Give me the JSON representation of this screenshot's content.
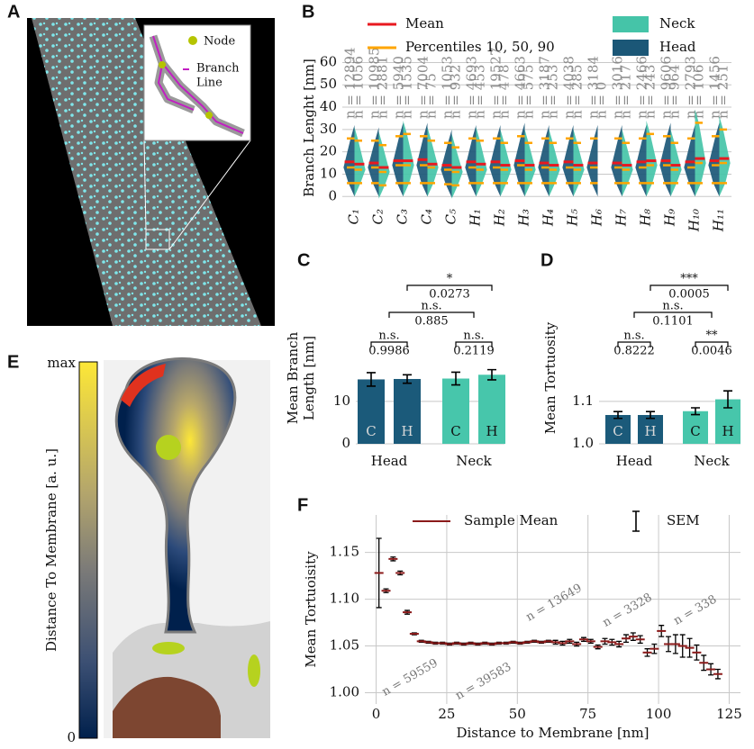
{
  "panel_labels": [
    "A",
    "B",
    "C",
    "D",
    "E",
    "F"
  ],
  "panel_a": {
    "inset_legend": {
      "node": "Node",
      "branch_line": [
        "Branch",
        "Line"
      ]
    }
  },
  "panel_e": {
    "colorbar": {
      "label": "Distance To Membrane [a. u.]",
      "ticks": [
        "max",
        "0"
      ]
    }
  },
  "chart_data": [
    {
      "type": "violin",
      "ylabel": "Branch Lenght [nm]",
      "categories": [
        "C₁",
        "C₂",
        "C₃",
        "C₄",
        "C₅",
        "H₁",
        "H₂",
        "H₃",
        "H₄",
        "H₅",
        "H₆",
        "H₇",
        "H₈",
        "H₉",
        "H₁₀",
        "H₁₁"
      ],
      "ylim": [
        -1.5,
        63
      ],
      "yticks": [
        0,
        10,
        20,
        30,
        40,
        50,
        60
      ],
      "grid": true,
      "legend": {
        "mean_label": "Mean",
        "mean_color": "#e8191f",
        "percentile_label": "Percentiles 10, 50, 90",
        "percentile_color": "#ffa500"
      },
      "series": [
        {
          "name": "Head",
          "color": "#1b5777",
          "mean": [
            15.5,
            15,
            16,
            16.5,
            14,
            15.5,
            15.5,
            16,
            15,
            15.5,
            15,
            15,
            15.5,
            16,
            15.5,
            16
          ],
          "p10": [
            6,
            6,
            6,
            6,
            5.5,
            6,
            6,
            6,
            6,
            6,
            6,
            6,
            6,
            6,
            6,
            6
          ],
          "p50": [
            13,
            13,
            14,
            14,
            12,
            13,
            13,
            14,
            13,
            13,
            13,
            13,
            13,
            14,
            13,
            14
          ],
          "p90": [
            26,
            25,
            27,
            27,
            24,
            26,
            26,
            27,
            26,
            26,
            26,
            26,
            26,
            27,
            26,
            27
          ],
          "n_labels": [
            "n = 12894",
            "n = 10985",
            "n = 5940",
            "n = 7004",
            "n = 1053",
            "n = 4693",
            "n = 19527",
            "n = 4663",
            "n = 3187",
            "n = 4038",
            "n = 3184",
            "n = 3016",
            "n = 2466",
            "n = 9606",
            "n = 2793",
            "n = 1456"
          ]
        },
        {
          "name": "Neck",
          "color": "#45c4a8",
          "mean": [
            14.5,
            13,
            16,
            14.5,
            13,
            14.5,
            14,
            14,
            14,
            14,
            null,
            14,
            16,
            14,
            17,
            17
          ],
          "p10": [
            6,
            5,
            6,
            6,
            5,
            6,
            6,
            6,
            6,
            6,
            null,
            6,
            6,
            6,
            6,
            6
          ],
          "p50": [
            12,
            11,
            14,
            13,
            11,
            12,
            12,
            12,
            12,
            12,
            null,
            12,
            14,
            12,
            15,
            15
          ],
          "p90": [
            25,
            23,
            28,
            25,
            22,
            25,
            24,
            24,
            24,
            24,
            null,
            24,
            28,
            24,
            33,
            30
          ],
          "n_labels": [
            "n = 1056",
            "n = 2881",
            "n = 1535",
            "n = 75",
            "n = 932",
            "n = 453",
            "n = 478",
            "n = 575",
            "n = 253",
            "n = 285",
            "n = 0",
            "n = 217",
            "n = 243",
            "n = 964",
            "n = 106",
            "n = 251"
          ]
        }
      ]
    },
    {
      "type": "bar",
      "ylabel": [
        "Mean Branch",
        "Length [nm]"
      ],
      "categories": [
        "Head",
        "Neck"
      ],
      "colors": [
        "#1b5a7a",
        "#47c6ab"
      ],
      "series": [
        {
          "name": "C",
          "values": [
            15.2,
            15.4
          ],
          "errors": [
            1.6,
            1.5
          ]
        },
        {
          "name": "H",
          "values": [
            15.3,
            16.3
          ],
          "errors": [
            1.0,
            1.2
          ]
        }
      ],
      "ylim": [
        0,
        41
      ],
      "yticks": [
        0,
        10
      ],
      "grid": true,
      "comparisons": [
        {
          "label": "n.s.",
          "p": 0.9986
        },
        {
          "label": "n.s.",
          "p": 0.2119
        },
        {
          "label": "n.s.",
          "p": 0.885
        },
        {
          "label": "*",
          "p": 0.0273
        }
      ]
    },
    {
      "type": "bar",
      "ylabel": "Mean Tortuosity",
      "categories": [
        "Head",
        "Neck"
      ],
      "colors": [
        "#1b5a7a",
        "#47c6ab"
      ],
      "series": [
        {
          "name": "C",
          "values": [
            1.068,
            1.077
          ],
          "errors": [
            0.008,
            0.008
          ]
        },
        {
          "name": "H",
          "values": [
            1.068,
            1.105
          ],
          "errors": [
            0.008,
            0.02
          ]
        }
      ],
      "ylim": [
        1,
        1.41
      ],
      "yticks": [
        {
          "value": 1,
          "label": "1.0"
        },
        1.1
      ],
      "grid": true,
      "comparisons": [
        {
          "label": "n.s.",
          "p": 0.8222
        },
        {
          "label": "**",
          "p": 0.0046
        },
        {
          "label": "n.s.",
          "p": 0.1101
        },
        {
          "label": "***",
          "p": 0.0005
        }
      ]
    },
    {
      "type": "errorbar",
      "xlabel": "Distance to Membrane [nm]",
      "ylabel": "Mean Tortuoisity",
      "x": [
        1,
        3.5,
        6,
        8.5,
        11,
        13.5,
        16,
        18.5,
        21,
        23.5,
        26,
        28.5,
        31,
        33.5,
        36,
        38.5,
        41,
        43.5,
        46,
        48.5,
        51,
        53.5,
        56,
        58.5,
        61,
        63.5,
        66,
        68.5,
        71,
        73.5,
        76,
        78.5,
        81,
        83.5,
        86,
        88.5,
        91,
        93.5,
        96,
        98.5,
        101,
        103.5,
        106,
        108.5,
        111,
        113.5,
        116,
        118.5,
        121
      ],
      "series": [
        {
          "name": "Sample Mean",
          "color": "#8b1a1a",
          "values": [
            1.128,
            1.109,
            1.143,
            1.128,
            1.086,
            1.063,
            1.055,
            1.054,
            1.053,
            1.053,
            1.052,
            1.053,
            1.052,
            1.053,
            1.052,
            1.053,
            1.052,
            1.053,
            1.053,
            1.054,
            1.053,
            1.054,
            1.055,
            1.054,
            1.055,
            1.054,
            1.053,
            1.055,
            1.052,
            1.057,
            1.055,
            1.049,
            1.055,
            1.054,
            1.052,
            1.058,
            1.06,
            1.057,
            1.043,
            1.047,
            1.066,
            1.052,
            1.052,
            1.05,
            1.048,
            1.043,
            1.032,
            1.025,
            1.02
          ],
          "errors": [
            0.037,
            0.002,
            0.002,
            0.002,
            0.002,
            0.001,
            0.001,
            0.001,
            0.001,
            0.001,
            0.001,
            0.001,
            0.001,
            0.001,
            0.001,
            0.001,
            0.001,
            0.001,
            0.001,
            0.001,
            0.001,
            0.001,
            0.001,
            0.001,
            0.001,
            0.002,
            0.002,
            0.002,
            0.002,
            0.002,
            0.002,
            0.002,
            0.003,
            0.003,
            0.003,
            0.004,
            0.004,
            0.004,
            0.004,
            0.005,
            0.006,
            0.008,
            0.01,
            0.012,
            0.01,
            0.008,
            0.008,
            0.006,
            0.005
          ]
        }
      ],
      "error_name": "SEM",
      "error_color": "#000000",
      "xlim": [
        -4,
        129
      ],
      "xticks": [
        0,
        25,
        50,
        75,
        100,
        125
      ],
      "ylim": [
        0.988,
        1.19
      ],
      "yticks": [
        {
          "value": 1,
          "label": "1.00"
        },
        1.05,
        {
          "value": 1.1,
          "label": "1.10"
        },
        1.15
      ],
      "grid": true,
      "annotations": [
        "n = 59559",
        "n = 39583",
        "n = 13649",
        "n = 3328",
        "n = 338"
      ]
    }
  ]
}
